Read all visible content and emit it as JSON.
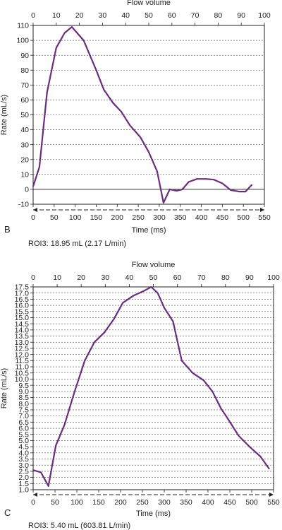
{
  "colors": {
    "series": "#6b2d7e",
    "axis": "#222222",
    "grid": "#444444"
  },
  "chart_data": [
    {
      "type": "line",
      "panel_label": "B",
      "top_axis_title": "Flow volume",
      "top_ticks": [
        "0",
        "10",
        "20",
        "30",
        "40",
        "50",
        "60",
        "70",
        "80",
        "90",
        "100"
      ],
      "xlabel": "Time (ms)",
      "ylabel": "Rate (mL/s)",
      "xlim": [
        0,
        550
      ],
      "ylim": [
        -10,
        110
      ],
      "x_ticks": [
        "0",
        "50",
        "100",
        "150",
        "200",
        "250",
        "300",
        "350",
        "400",
        "450",
        "500",
        "550"
      ],
      "y_ticks": [
        "110",
        "100",
        "90",
        "80",
        "70",
        "60",
        "50",
        "40",
        "30",
        "20",
        "10",
        "0",
        "-10"
      ],
      "grid": "horizontal dashed",
      "zero_line": true,
      "annotation": "ROI3: 18.95 mL (2.17 L/min)",
      "series": [
        {
          "x": [
            0,
            15,
            33,
            55,
            75,
            92,
            120,
            150,
            168,
            190,
            210,
            230,
            255,
            275,
            295,
            310,
            325,
            342,
            355,
            370,
            390,
            410,
            430,
            450,
            470,
            490,
            505,
            520
          ],
          "y": [
            2,
            15,
            65,
            95,
            105,
            109,
            100,
            80,
            67,
            58,
            52,
            43,
            35,
            25,
            12,
            -9,
            0,
            -1,
            0,
            5,
            7,
            7,
            6.5,
            4,
            -0.5,
            -1.5,
            -1.5,
            3
          ]
        }
      ]
    },
    {
      "type": "line",
      "panel_label": "C",
      "top_axis_title": "Flow volume",
      "top_ticks": [
        "0",
        "10",
        "20",
        "30",
        "40",
        "50",
        "60",
        "70",
        "80",
        "90",
        "100"
      ],
      "xlabel": "Time (ms)",
      "ylabel": "Rate (mL/s)",
      "xlim": [
        0,
        550
      ],
      "ylim": [
        1.0,
        17.5
      ],
      "x_ticks": [
        "0",
        "50",
        "100",
        "150",
        "200",
        "250",
        "300",
        "350",
        "400",
        "450",
        "500",
        "550"
      ],
      "y_ticks": [
        "17.5",
        "17.0",
        "16.5",
        "16.0",
        "15.5",
        "15.0",
        "14.5",
        "14.0",
        "13.5",
        "13.0",
        "12.5",
        "12.0",
        "11.5",
        "11.0",
        "10.5",
        "10.0",
        "9.5",
        "9.0",
        "8.5",
        "8.0",
        "7.5",
        "7.0",
        "6.5",
        "6.0",
        "5.5",
        "5.0",
        "4.5",
        "4.0",
        "3.5",
        "3.0",
        "2.5",
        "2.0",
        "1.5",
        "1.0"
      ],
      "grid": "horizontal dashed",
      "zero_line": false,
      "annotation": "ROI3: 5.40 mL (603.81 L/min)",
      "series": [
        {
          "x": [
            0,
            18,
            35,
            52,
            72,
            95,
            118,
            140,
            163,
            185,
            205,
            230,
            255,
            270,
            285,
            300,
            320,
            340,
            365,
            390,
            410,
            430,
            445,
            470,
            495,
            520,
            540
          ],
          "y": [
            2.6,
            2.4,
            1.3,
            4.6,
            6.3,
            9.0,
            11.5,
            13.0,
            13.8,
            14.9,
            16.2,
            16.8,
            17.2,
            17.5,
            17.0,
            15.8,
            14.7,
            11.5,
            10.5,
            9.9,
            9.0,
            7.6,
            6.8,
            5.4,
            4.5,
            3.7,
            2.7
          ]
        }
      ]
    }
  ]
}
